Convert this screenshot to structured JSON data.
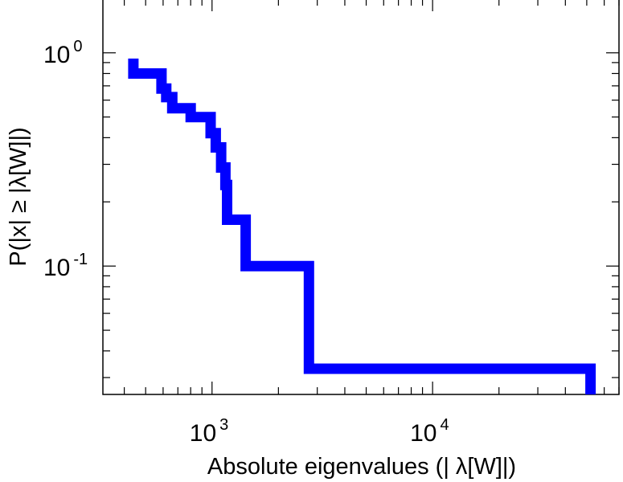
{
  "chart_data": {
    "type": "line",
    "step": true,
    "xscale": "log",
    "yscale": "log",
    "xlabel": "Absolute eigenvalues (|     λ[W]|)",
    "ylabel": "P(|x|  ≥ |λ[W]|)",
    "xlim": [
      320,
      70000
    ],
    "ylim": [
      0.025,
      1.8
    ],
    "grid": false,
    "color": "#0000ff",
    "x_ticks": [
      {
        "base": "10",
        "exp": "3",
        "value": 1000
      },
      {
        "base": "10",
        "exp": "4",
        "value": 10000
      }
    ],
    "y_ticks": [
      {
        "base": "10",
        "exp": "0",
        "value": 1
      },
      {
        "base": "10",
        "exp": "-1",
        "value": 0.1
      }
    ],
    "series": [
      {
        "points": [
          [
            440,
            0.94
          ],
          [
            440,
            0.8
          ],
          [
            590,
            0.8
          ],
          [
            590,
            0.68
          ],
          [
            620,
            0.68
          ],
          [
            620,
            0.62
          ],
          [
            660,
            0.62
          ],
          [
            660,
            0.55
          ],
          [
            800,
            0.55
          ],
          [
            800,
            0.5
          ],
          [
            985,
            0.5
          ],
          [
            985,
            0.42
          ],
          [
            1040,
            0.42
          ],
          [
            1040,
            0.36
          ],
          [
            1100,
            0.36
          ],
          [
            1100,
            0.29
          ],
          [
            1150,
            0.29
          ],
          [
            1150,
            0.24
          ],
          [
            1170,
            0.24
          ],
          [
            1170,
            0.165
          ],
          [
            1420,
            0.165
          ],
          [
            1420,
            0.1
          ],
          [
            2750,
            0.1
          ],
          [
            2750,
            0.033
          ],
          [
            52000,
            0.033
          ],
          [
            52000,
            0.025
          ]
        ]
      }
    ]
  }
}
